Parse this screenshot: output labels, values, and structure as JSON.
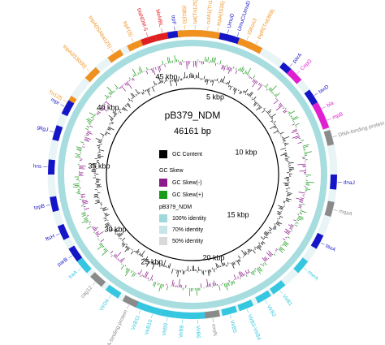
{
  "title": "pB379_NDM",
  "length": "46161 bp",
  "scale_labels": [
    "45 kbp",
    "5 kbp",
    "10 kbp",
    "15 kbp",
    "20 kbp",
    "25 kbp",
    "30 kbp",
    "35 kbp",
    "40 kbp"
  ],
  "legend": {
    "gc_content": "GC Content",
    "gc_skew": "GC Skew",
    "gc_skew_neg": "GC Skew(-)",
    "gc_skew_pos": "GC Skew(+)",
    "ring": "pB379_NDM",
    "identity_100": "100% identity",
    "identity_70": "70% identity",
    "identity_50": "50% identity"
  },
  "genes": [
    "Tn125",
    "tnpA(IS3000)",
    "tnpA(ISAba125)",
    "trpF(S)",
    "blaNDM-5",
    "bleMBL",
    "trpF",
    "ISB1(S)",
    "tat(Tn125)",
    "cutA1(Tn125)",
    "tnpA(IS26)",
    "UmuD",
    "UmuC/UmuD",
    "ISKox3",
    "tnpR(Tn6369)",
    "parA",
    "CopG",
    "taxD",
    "bla",
    "mpB",
    "DNA-binding protein",
    "dnaJ",
    "mqsA",
    "taxA",
    "mvrA",
    "VirB1",
    "VirB2",
    "VirB3-VirB4",
    "VirB5",
    "exsN",
    "VirB6",
    "VirB8",
    "VirB9",
    "VirB10",
    "VirB11",
    "DNA-binding protein",
    "VirD4",
    "cag12",
    "traA",
    "parB",
    "ftsH",
    "topB",
    "hns",
    "gkgJ",
    "mpr"
  ]
}
